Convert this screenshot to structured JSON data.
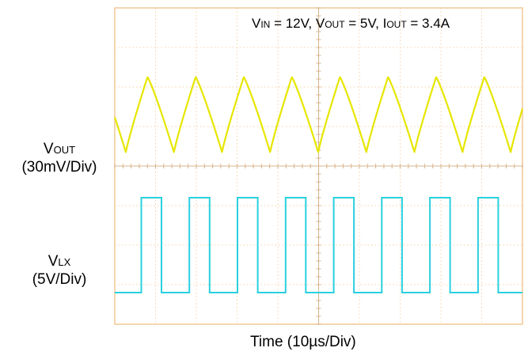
{
  "chart_data": {
    "type": "line",
    "title": "",
    "conditions": {
      "vin_label": "V",
      "vin_sub": "IN",
      "vin_value": " = 12V, ",
      "vout_label": "V",
      "vout_sub": "OUT",
      "vout_value": " = 5V, ",
      "iout_label": "I",
      "iout_sub": "OUT",
      "iout_value": " = 3.4A"
    },
    "xlabel": "Time (10µs/Div)",
    "x_divisions": 10,
    "y_divisions": 8,
    "grid": true,
    "x_range_us": [
      0,
      100
    ],
    "series": [
      {
        "label_main": "V",
        "label_sub": "OUT",
        "scale": "(30mV/Div)",
        "color": "#e6e600",
        "waveform": "triangle-ripple",
        "period_us": 11.8,
        "peak_to_peak_mV": 57,
        "offset_div": 2.7
      },
      {
        "label_main": "V",
        "label_sub": "LX",
        "scale": "(5V/Div)",
        "color": "#29d0e0",
        "waveform": "square",
        "period_us": 11.8,
        "duty_cycle": 0.42,
        "high_V": 12,
        "low_V": 0
      }
    ]
  }
}
